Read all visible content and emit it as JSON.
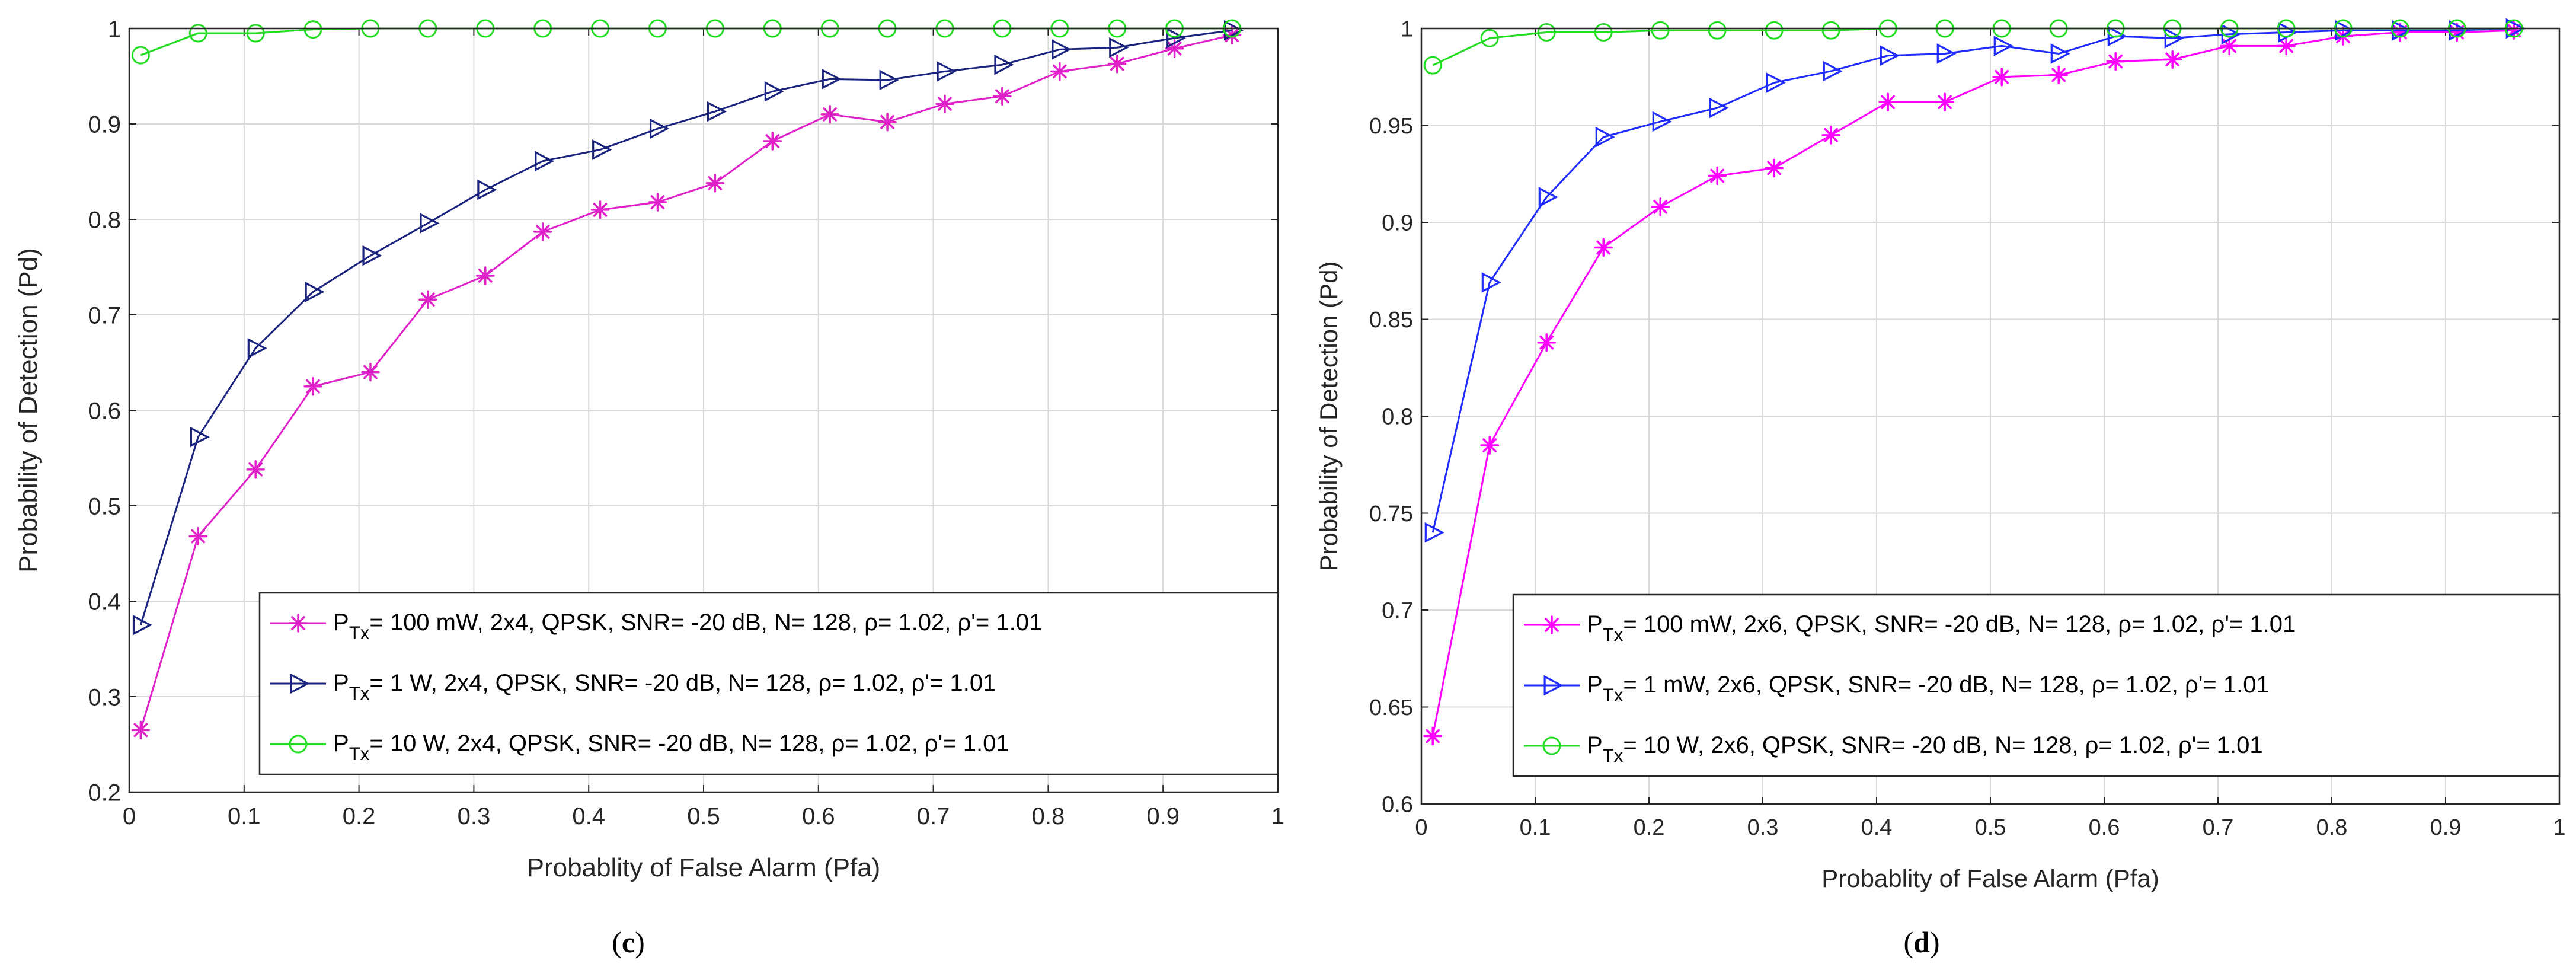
{
  "colors": {
    "magenta": "#ff00ff",
    "magenta_c": "#e020c8",
    "blue_c": "#1a237e",
    "blue_d": "#1f2bff",
    "green": "#22dd22",
    "grid": "#d9d9d9",
    "axis": "#262626"
  },
  "chart_data": [
    {
      "type": "line",
      "panel_label": "c",
      "xlabel": "Probablity of False Alarm (Pfa)",
      "ylabel": "Probability of Detection (Pd)",
      "xlim": [
        0,
        1
      ],
      "ylim": [
        0.2,
        1
      ],
      "xticks": [
        0,
        0.1,
        0.2,
        0.3,
        0.4,
        0.5,
        0.6,
        0.7,
        0.8,
        0.9,
        1
      ],
      "xtick_labels": [
        "0",
        "0.1",
        "0.2",
        "0.3",
        "0.4",
        "0.5",
        "0.6",
        "0.7",
        "0.8",
        "0.9",
        "1"
      ],
      "yticks": [
        0.2,
        0.3,
        0.4,
        0.5,
        0.6,
        0.7,
        0.8,
        0.9,
        1
      ],
      "ytick_labels": [
        "0.2",
        "0.3",
        "0.4",
        "0.5",
        "0.6",
        "0.7",
        "0.8",
        "0.9",
        "1"
      ],
      "grid": true,
      "legend_position": "bottom-right",
      "x": [
        0.01,
        0.06,
        0.11,
        0.16,
        0.21,
        0.26,
        0.31,
        0.36,
        0.41,
        0.46,
        0.51,
        0.56,
        0.61,
        0.66,
        0.71,
        0.76,
        0.81,
        0.86,
        0.91,
        0.96
      ],
      "series": [
        {
          "name": "P_Tx= 100 mW, 2x4, QPSK, SNR= -20 dB, N= 128, ρ= 1.02, ρ'= 1.01",
          "legend_main": "P",
          "legend_sub": "Tx",
          "legend_rest": "= 100 mW, 2x4, QPSK, SNR= -20 dB, N= 128, ρ= 1.02, ρ'= 1.01",
          "marker": "asterisk",
          "color": "#e020c8",
          "values": [
            0.265,
            0.468,
            0.538,
            0.625,
            0.64,
            0.716,
            0.741,
            0.787,
            0.81,
            0.818,
            0.838,
            0.882,
            0.91,
            0.902,
            0.921,
            0.929,
            0.955,
            0.963,
            0.979,
            0.993
          ]
        },
        {
          "name": "P_Tx= 1 W, 2x4, QPSK, SNR= -20 dB, N= 128, ρ= 1.02, ρ'= 1.01",
          "legend_main": "P",
          "legend_sub": "Tx",
          "legend_rest": "= 1 W, 2x4, QPSK, SNR= -20 dB, N= 128, ρ= 1.02, ρ'= 1.01",
          "marker": "triangle-right",
          "color": "#1a237e",
          "values": [
            0.375,
            0.572,
            0.665,
            0.724,
            0.762,
            0.796,
            0.831,
            0.861,
            0.873,
            0.895,
            0.913,
            0.934,
            0.947,
            0.946,
            0.955,
            0.962,
            0.978,
            0.98,
            0.99,
            0.998
          ]
        },
        {
          "name": "P_Tx= 10 W, 2x4, QPSK, SNR= -20 dB, N= 128, ρ= 1.02, ρ'= 1.01",
          "legend_main": "P",
          "legend_sub": "Tx",
          "legend_rest": "= 10 W, 2x4, QPSK, SNR= -20 dB, N= 128, ρ= 1.02, ρ'= 1.01",
          "marker": "circle",
          "color": "#22dd22",
          "values": [
            0.972,
            0.995,
            0.995,
            0.999,
            1.0,
            1.0,
            1.0,
            1.0,
            1.0,
            1.0,
            1.0,
            1.0,
            1.0,
            1.0,
            1.0,
            1.0,
            1.0,
            1.0,
            1.0,
            1.0
          ]
        }
      ]
    },
    {
      "type": "line",
      "panel_label": "d",
      "xlabel": "Probablity of False Alarm (Pfa)",
      "ylabel": "Probability of Detection (Pd)",
      "xlim": [
        0,
        1
      ],
      "ylim": [
        0.6,
        1
      ],
      "xticks": [
        0,
        0.1,
        0.2,
        0.3,
        0.4,
        0.5,
        0.6,
        0.7,
        0.8,
        0.9,
        1
      ],
      "xtick_labels": [
        "0",
        "0.1",
        "0.2",
        "0.3",
        "0.4",
        "0.5",
        "0.6",
        "0.7",
        "0.8",
        "0.9",
        "1"
      ],
      "yticks": [
        0.6,
        0.65,
        0.7,
        0.75,
        0.8,
        0.85,
        0.9,
        0.95,
        1
      ],
      "ytick_labels": [
        "0.6",
        "0.65",
        "0.7",
        "0.75",
        "0.8",
        "0.85",
        "0.9",
        "0.95",
        "1"
      ],
      "grid": true,
      "legend_position": "bottom-right",
      "x": [
        0.01,
        0.06,
        0.11,
        0.16,
        0.21,
        0.26,
        0.31,
        0.36,
        0.41,
        0.46,
        0.51,
        0.56,
        0.61,
        0.66,
        0.71,
        0.76,
        0.81,
        0.86,
        0.91,
        0.96
      ],
      "series": [
        {
          "name": "P_Tx= 100 mW, 2x6, QPSK, SNR= -20 dB, N= 128, ρ= 1.02, ρ'= 1.01",
          "legend_main": "P",
          "legend_sub": "Tx",
          "legend_rest": "= 100 mW, 2x6, QPSK, SNR= -20 dB, N= 128, ρ= 1.02, ρ'= 1.01",
          "marker": "asterisk",
          "color": "#ff00ff",
          "values": [
            0.635,
            0.785,
            0.838,
            0.887,
            0.908,
            0.924,
            0.928,
            0.945,
            0.962,
            0.962,
            0.975,
            0.976,
            0.983,
            0.984,
            0.991,
            0.991,
            0.996,
            0.998,
            0.998,
            0.999
          ]
        },
        {
          "name": "P_Tx= 1 mW, 2x6, QPSK, SNR= -20 dB, N= 128, ρ= 1.02, ρ'= 1.01",
          "legend_main": "P",
          "legend_sub": "Tx",
          "legend_rest": "= 1  mW, 2x6, QPSK, SNR= -20 dB, N= 128, ρ= 1.02, ρ'= 1.01",
          "marker": "triangle-right",
          "color": "#1f2bff",
          "values": [
            0.74,
            0.869,
            0.913,
            0.944,
            0.952,
            0.959,
            0.972,
            0.978,
            0.986,
            0.987,
            0.991,
            0.987,
            0.996,
            0.995,
            0.997,
            0.998,
            0.999,
            0.999,
            0.999,
            1.0
          ]
        },
        {
          "name": "P_Tx= 10 W, 2x6, QPSK, SNR= -20 dB, N= 128, ρ= 1.02, ρ'= 1.01",
          "legend_main": "P",
          "legend_sub": "Tx",
          "legend_rest": "= 10 W, 2x6, QPSK, SNR= -20 dB, N= 128, ρ= 1.02, ρ'= 1.01",
          "marker": "circle",
          "color": "#22dd22",
          "values": [
            0.981,
            0.995,
            0.998,
            0.998,
            0.999,
            0.999,
            0.999,
            0.999,
            1.0,
            1.0,
            1.0,
            1.0,
            1.0,
            1.0,
            1.0,
            1.0,
            1.0,
            1.0,
            1.0,
            1.0
          ]
        }
      ]
    }
  ]
}
